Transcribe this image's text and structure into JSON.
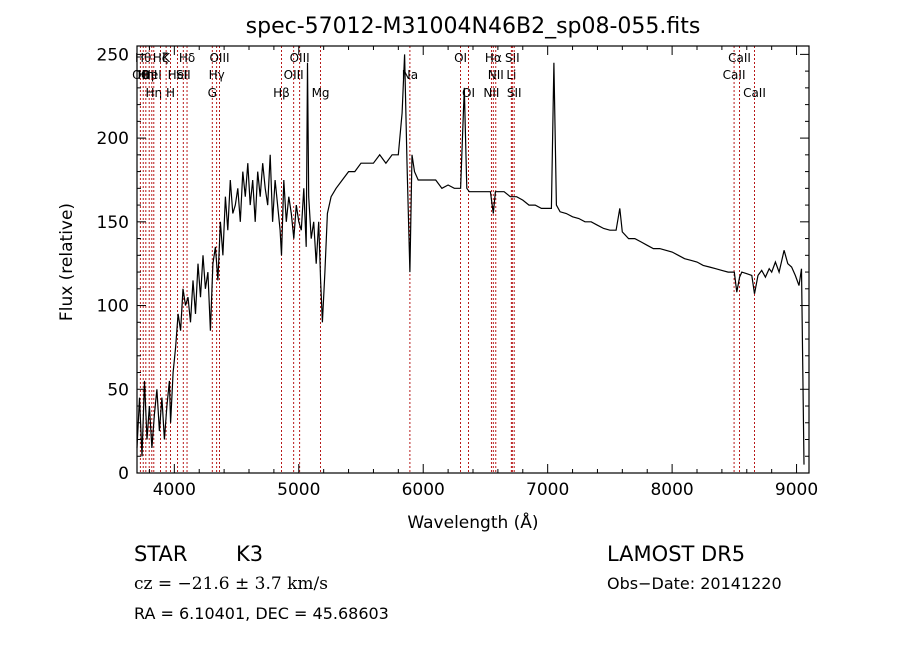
{
  "chart_data": {
    "type": "line",
    "title": "spec-57012-M31004N46B2_sp08-055.fits",
    "xlabel": "Wavelength (Å)",
    "ylabel": "Flux (relative)",
    "xlim": [
      3700,
      9100
    ],
    "ylim": [
      0,
      255
    ],
    "xticks": [
      4000,
      5000,
      6000,
      7000,
      8000,
      9000
    ],
    "yticks": [
      0,
      50,
      100,
      150,
      200,
      250
    ],
    "grid": false,
    "series": [
      {
        "x": [
          3700,
          3720,
          3740,
          3760,
          3780,
          3800,
          3820,
          3840,
          3860,
          3880,
          3900,
          3920,
          3940,
          3960,
          3970,
          3990,
          4010,
          4030,
          4050,
          4070,
          4090,
          4110,
          4130,
          4150,
          4170,
          4190,
          4210,
          4230,
          4250,
          4270,
          4290,
          4310,
          4330,
          4350,
          4370,
          4390,
          4410,
          4430,
          4450,
          4470,
          4490,
          4510,
          4530,
          4550,
          4570,
          4590,
          4610,
          4630,
          4650,
          4670,
          4690,
          4710,
          4730,
          4750,
          4770,
          4790,
          4810,
          4830,
          4850,
          4861,
          4880,
          4900,
          4920,
          4940,
          4960,
          4980,
          5000,
          5020,
          5040,
          5060,
          5070,
          5080,
          5100,
          5120,
          5140,
          5160,
          5175,
          5190,
          5210,
          5230,
          5260,
          5300,
          5350,
          5400,
          5450,
          5500,
          5550,
          5600,
          5650,
          5700,
          5750,
          5800,
          5830,
          5850,
          5870,
          5893,
          5910,
          5930,
          5960,
          6000,
          6050,
          6100,
          6150,
          6200,
          6250,
          6300,
          6330,
          6350,
          6370,
          6400,
          6450,
          6500,
          6540,
          6563,
          6580,
          6600,
          6650,
          6700,
          6750,
          6800,
          6850,
          6900,
          6950,
          7000,
          7030,
          7050,
          7070,
          7100,
          7150,
          7200,
          7250,
          7300,
          7350,
          7400,
          7450,
          7500,
          7550,
          7580,
          7600,
          7650,
          7700,
          7750,
          7800,
          7850,
          7900,
          7950,
          8000,
          8050,
          8100,
          8150,
          8200,
          8250,
          8300,
          8350,
          8400,
          8450,
          8500,
          8520,
          8542,
          8560,
          8600,
          8640,
          8662,
          8690,
          8720,
          8750,
          8780,
          8800,
          8830,
          8860,
          8900,
          8930,
          8960,
          8990,
          9020,
          9040,
          9060
        ],
        "y": [
          15,
          45,
          10,
          55,
          20,
          40,
          15,
          35,
          50,
          25,
          45,
          20,
          40,
          55,
          30,
          60,
          75,
          95,
          85,
          110,
          100,
          105,
          90,
          115,
          95,
          125,
          105,
          130,
          110,
          120,
          85,
          125,
          135,
          115,
          150,
          130,
          165,
          145,
          175,
          155,
          160,
          170,
          150,
          180,
          165,
          185,
          160,
          175,
          150,
          180,
          165,
          185,
          170,
          160,
          190,
          150,
          175,
          160,
          145,
          130,
          175,
          150,
          165,
          155,
          140,
          160,
          150,
          145,
          170,
          135,
          245,
          165,
          140,
          150,
          125,
          150,
          115,
          90,
          120,
          155,
          165,
          170,
          175,
          180,
          180,
          185,
          185,
          185,
          190,
          185,
          190,
          190,
          215,
          250,
          185,
          120,
          190,
          180,
          175,
          175,
          175,
          175,
          170,
          172,
          170,
          170,
          230,
          170,
          168,
          168,
          168,
          168,
          168,
          155,
          168,
          168,
          168,
          165,
          165,
          163,
          160,
          160,
          158,
          158,
          158,
          245,
          160,
          156,
          155,
          153,
          152,
          150,
          150,
          148,
          146,
          145,
          145,
          158,
          144,
          140,
          140,
          138,
          136,
          134,
          134,
          133,
          132,
          130,
          128,
          127,
          126,
          124,
          123,
          122,
          121,
          120,
          120,
          108,
          117,
          120,
          119,
          118,
          107,
          118,
          121,
          117,
          122,
          120,
          126,
          120,
          133,
          125,
          123,
          118,
          112,
          122,
          5
        ]
      }
    ],
    "lines": [
      {
        "w": 3727,
        "label": "OII",
        "row": 2
      },
      {
        "w": 3750,
        "label": "Hθ",
        "row": 1
      },
      {
        "w": 3771,
        "label": "Hη",
        "row": 2
      },
      {
        "w": 3798,
        "label": "OII",
        "row": 2
      },
      {
        "w": 3819,
        "label": "HeI",
        "row": 2
      },
      {
        "w": 3835,
        "label": "Hη",
        "row": 3
      },
      {
        "w": 3889,
        "label": "Hζ",
        "row": 1
      },
      {
        "w": 3934,
        "label": "K",
        "row": 1
      },
      {
        "w": 3969,
        "label": "H",
        "row": 3
      },
      {
        "w": 4026,
        "label": "HeI",
        "row": 2
      },
      {
        "w": 4072,
        "label": "SII",
        "row": 2
      },
      {
        "w": 4102,
        "label": "Hδ",
        "row": 1
      },
      {
        "w": 4305,
        "label": "G",
        "row": 3
      },
      {
        "w": 4340,
        "label": "Hγ",
        "row": 2
      },
      {
        "w": 4363,
        "label": "OIII",
        "row": 1
      },
      {
        "w": 4861,
        "label": "Hβ",
        "row": 3
      },
      {
        "w": 4959,
        "label": "OIII",
        "row": 2
      },
      {
        "w": 5007,
        "label": "OIII",
        "row": 1
      },
      {
        "w": 5175,
        "label": "Mg",
        "row": 3
      },
      {
        "w": 5893,
        "label": "Na",
        "row": 2
      },
      {
        "w": 6300,
        "label": "OI",
        "row": 1
      },
      {
        "w": 6364,
        "label": "OI",
        "row": 3
      },
      {
        "w": 6548,
        "label": "NII",
        "row": 3
      },
      {
        "w": 6563,
        "label": "Hα",
        "row": 1
      },
      {
        "w": 6583,
        "label": "NII",
        "row": 2
      },
      {
        "w": 6708,
        "label": "Li",
        "row": 2
      },
      {
        "w": 6716,
        "label": "SII",
        "row": 1
      },
      {
        "w": 6731,
        "label": "SII",
        "row": 3
      },
      {
        "w": 8498,
        "label": "CaII",
        "row": 2
      },
      {
        "w": 8542,
        "label": "CaII",
        "row": 1
      },
      {
        "w": 8662,
        "label": "CaII",
        "row": 3
      }
    ]
  },
  "info": {
    "class": "STAR",
    "subclass": "K3",
    "survey": "LAMOST DR5",
    "cz": "cz = −21.6 ± 3.7 km/s",
    "obsdate": "Obs−Date: 20141220",
    "coords": "RA =    6.10401, DEC =  45.68603"
  }
}
